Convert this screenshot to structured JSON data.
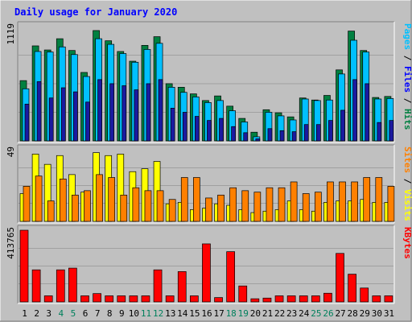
{
  "title": "Daily usage for January 2020",
  "colors": {
    "background": "#c0c0c0",
    "title": "#0000ff",
    "hits": "#008040",
    "files": "#00c0ff",
    "pages": "#00c0ff",
    "visits": "#ffff00",
    "sites": "#ff8000",
    "kbytes": "#ff0000",
    "weekend": "#00805c",
    "weekday": "#000000"
  },
  "chart_data": [
    {
      "type": "bar",
      "panel": "hits-files-pages",
      "max_label": "1119",
      "ylim": [
        0,
        1119
      ],
      "right_labels": [
        {
          "text": "Pages",
          "color": "#00c0ff"
        },
        {
          "text": " / ",
          "color": "#000000"
        },
        {
          "text": "Files",
          "color": "#0000ff"
        },
        {
          "text": " / ",
          "color": "#000000"
        },
        {
          "text": "Hits",
          "color": "#008040"
        }
      ],
      "categories": [
        "1",
        "2",
        "3",
        "4",
        "5",
        "6",
        "7",
        "8",
        "9",
        "10",
        "11",
        "12",
        "13",
        "14",
        "15",
        "16",
        "17",
        "18",
        "19",
        "20",
        "21",
        "22",
        "23",
        "24",
        "25",
        "26",
        "27",
        "28",
        "29",
        "30",
        "31"
      ],
      "series": [
        {
          "name": "Hits",
          "values": [
            590,
            930,
            890,
            1000,
            885,
            670,
            1080,
            980,
            875,
            780,
            935,
            1020,
            560,
            525,
            460,
            395,
            440,
            340,
            220,
            85,
            305,
            275,
            235,
            420,
            400,
            445,
            695,
            1075,
            885,
            425,
            435
          ]
        },
        {
          "name": "Files",
          "values": [
            510,
            875,
            870,
            920,
            845,
            630,
            1000,
            945,
            855,
            770,
            895,
            955,
            525,
            475,
            430,
            375,
            395,
            295,
            185,
            40,
            280,
            245,
            205,
            410,
            395,
            400,
            655,
            985,
            870,
            410,
            415
          ]
        },
        {
          "name": "Pages",
          "values": [
            360,
            580,
            420,
            520,
            480,
            380,
            600,
            560,
            540,
            500,
            560,
            600,
            320,
            280,
            240,
            200,
            220,
            140,
            80,
            20,
            120,
            100,
            90,
            160,
            160,
            200,
            300,
            600,
            560,
            180,
            200
          ]
        }
      ]
    },
    {
      "type": "bar",
      "panel": "visits-sites",
      "max_label": "49",
      "ylim": [
        0,
        49
      ],
      "right_labels": [
        {
          "text": "Sites",
          "color": "#ff8000"
        },
        {
          "text": " / ",
          "color": "#000000"
        },
        {
          "text": "Visits",
          "color": "#ffff00"
        }
      ],
      "categories": [
        "1",
        "2",
        "3",
        "4",
        "5",
        "6",
        "7",
        "8",
        "9",
        "10",
        "11",
        "12",
        "13",
        "14",
        "15",
        "16",
        "17",
        "18",
        "19",
        "20",
        "21",
        "22",
        "23",
        "24",
        "25",
        "26",
        "27",
        "28",
        "29",
        "30",
        "31"
      ],
      "series": [
        {
          "name": "Visits",
          "values": [
            19,
            46,
            39,
            45,
            32,
            20,
            47,
            45,
            46,
            34,
            36,
            41,
            12,
            13,
            8,
            9,
            12,
            11,
            8,
            6,
            7,
            8,
            14,
            8,
            7,
            13,
            14,
            14,
            15,
            13,
            13
          ]
        },
        {
          "name": "Sites",
          "values": [
            24,
            31,
            14,
            29,
            18,
            21,
            32,
            30,
            18,
            23,
            21,
            21,
            15,
            30,
            30,
            16,
            18,
            23,
            21,
            20,
            23,
            23,
            27,
            19,
            20,
            27,
            27,
            27,
            30,
            30,
            24
          ]
        }
      ]
    },
    {
      "type": "bar",
      "panel": "kbytes",
      "max_label": "413765",
      "ylim": [
        0,
        413765
      ],
      "right_labels": [
        {
          "text": "KBytes",
          "color": "#ff0000"
        }
      ],
      "categories": [
        "1",
        "2",
        "3",
        "4",
        "5",
        "6",
        "7",
        "8",
        "9",
        "10",
        "11",
        "12",
        "13",
        "14",
        "15",
        "16",
        "17",
        "18",
        "19",
        "20",
        "21",
        "22",
        "23",
        "24",
        "25",
        "26",
        "27",
        "28",
        "29",
        "30",
        "31"
      ],
      "series": [
        {
          "name": "KBytes",
          "values": [
            413765,
            185000,
            35000,
            185000,
            195000,
            35000,
            48000,
            35000,
            35000,
            35000,
            35000,
            185000,
            35000,
            175000,
            35000,
            335000,
            25000,
            290000,
            92000,
            18000,
            22000,
            35000,
            35000,
            35000,
            35000,
            50000,
            280000,
            160000,
            80000,
            35000,
            35000
          ]
        }
      ]
    }
  ],
  "weekend_days": [
    "4",
    "5",
    "11",
    "12",
    "18",
    "19",
    "25",
    "26"
  ]
}
